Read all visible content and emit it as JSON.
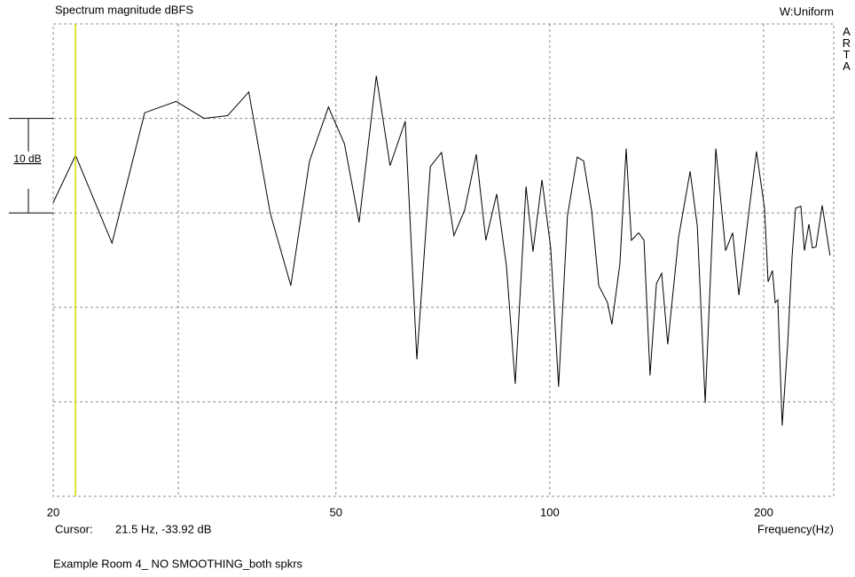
{
  "chart_data": {
    "type": "line",
    "title": "Spectrum magnitude dBFS",
    "window": "W:Uniform",
    "brand": "ARTA",
    "x_label": "Frequency(Hz)",
    "footer": "Example Room 4_ NO SMOOTHING_both spkrs",
    "log_x": true,
    "color": "#000000",
    "cursor_color": "#d8d800",
    "grid": true,
    "xlim": [
      20,
      251
    ],
    "ylim": [
      -70,
      -20
    ],
    "xticks": [
      20,
      50,
      100,
      200
    ],
    "xgrid": [
      30,
      50,
      100,
      200
    ],
    "ygrid": [
      -60,
      -50,
      -40,
      -30
    ],
    "scale_bar": {
      "label": "10 dB",
      "top": -30,
      "bottom": -40
    },
    "cursor": {
      "label": "Cursor:",
      "text": "21.5 Hz, -33.92 dB",
      "x": 21.5
    },
    "x": [
      20.0,
      21.5,
      24.2,
      26.9,
      29.8,
      32.6,
      35.2,
      37.7,
      40.4,
      43.2,
      45.9,
      48.8,
      51.4,
      53.9,
      57.0,
      59.6,
      62.6,
      65.0,
      67.9,
      70.4,
      73.3,
      75.9,
      78.8,
      81.3,
      84.2,
      86.9,
      89.4,
      92.6,
      94.7,
      97.5,
      100.3,
      102.9,
      105.9,
      109.3,
      111.6,
      114.5,
      117.2,
      120.6,
      122.3,
      125.5,
      128.1,
      130.3,
      133.4,
      135.7,
      138.4,
      141.3,
      143.7,
      146.6,
      151.8,
      157.6,
      161.3,
      165.5,
      171.3,
      176.8,
      180.9,
      184.6,
      191.0,
      195.4,
      200.6,
      202.9,
      205.8,
      207.6,
      209.4,
      212.4,
      216.2,
      219.3,
      221.8,
      225.7,
      228.3,
      231.6,
      234.3,
      237.0,
      241.8,
      248.0
    ],
    "values": [
      -38.9,
      -33.9,
      -43.2,
      -29.4,
      -28.2,
      -30.0,
      -29.7,
      -27.2,
      -40.0,
      -47.7,
      -34.5,
      -28.8,
      -32.7,
      -41.0,
      -25.5,
      -35.0,
      -30.3,
      -55.5,
      -35.1,
      -33.6,
      -42.4,
      -39.7,
      -33.8,
      -42.9,
      -38.0,
      -45.6,
      -58.1,
      -37.2,
      -44.1,
      -36.5,
      -43.7,
      -58.4,
      -40.3,
      -34.1,
      -34.5,
      -39.7,
      -47.7,
      -49.5,
      -51.8,
      -45.4,
      -33.2,
      -42.9,
      -42.1,
      -42.9,
      -57.2,
      -47.5,
      -46.4,
      -53.9,
      -42.6,
      -35.6,
      -41.4,
      -60.1,
      -33.2,
      -44.0,
      -42.1,
      -48.7,
      -39.4,
      -33.5,
      -39.5,
      -47.3,
      -46.1,
      -49.5,
      -49.2,
      -62.5,
      -53.9,
      -44.7,
      -39.5,
      -39.3,
      -44.0,
      -41.2,
      -43.7,
      -43.6,
      -39.2,
      -44.5
    ]
  }
}
